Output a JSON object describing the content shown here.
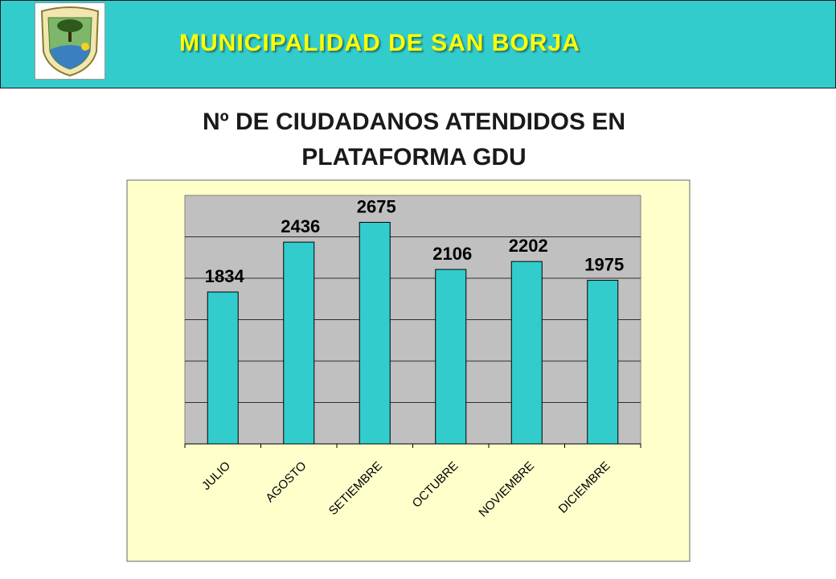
{
  "header": {
    "title": "MUNICIPALIDAD DE SAN BORJA",
    "colors": {
      "band": "#33CCCC",
      "title": "#FFFF00"
    },
    "logo_icon": "municipal-crest-icon"
  },
  "page": {
    "title_line1": "Nº DE CIUDADANOS ATENDIDOS EN",
    "title_line2": "PLATAFORMA GDU"
  },
  "chart_data": {
    "type": "bar",
    "categories": [
      "JULIO",
      "AGOSTO",
      "SETIEMBRE",
      "OCTUBRE",
      "NOVIEMBRE",
      "DICIEMBRE"
    ],
    "values": [
      1834,
      2436,
      2675,
      2106,
      2202,
      1975
    ],
    "data_labels": [
      "1834",
      "2436",
      "2675",
      "2106",
      "2202",
      "1975"
    ],
    "ylim": [
      0,
      3000
    ],
    "grid": true,
    "legend": "none",
    "colors": {
      "bar": "#33CCCC",
      "plot_bg": "#C0C0C0",
      "chart_bg": "#FFFFCC"
    }
  }
}
